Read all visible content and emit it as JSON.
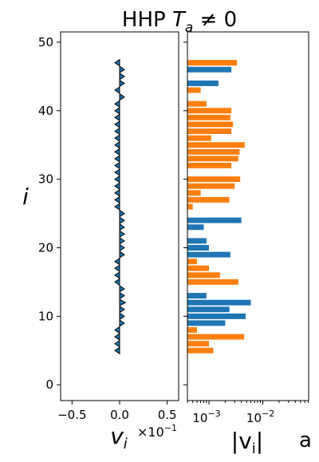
{
  "chart_data": {
    "title": "HHP $T_a \\neq 0$",
    "title_text": {
      "prefix": "HHP ",
      "var": "T",
      "sub": "a",
      "rel": " ≠ 0"
    },
    "panel_label": "a",
    "colors": {
      "arrow": "#1f77b4",
      "positive": "#1f77b4",
      "negative": "#ff7f0e"
    },
    "y_axis": {
      "label": "i",
      "ticks": [
        0,
        10,
        20,
        30,
        40,
        50
      ],
      "lim": [
        -2.3,
        51.5
      ]
    },
    "panels": [
      {
        "type": "quiver",
        "xlabel": "v_i",
        "xlabel_var": "v",
        "xlabel_sub": "i",
        "x_multiplier": "×10",
        "x_multiplier_exp": "−1",
        "xlim": [
          -0.62,
          0.62
        ],
        "x_ticks": [
          -0.5,
          0.0,
          0.5
        ],
        "x_tick_labels": [
          "−0.5",
          "0.0",
          "0.5"
        ]
      },
      {
        "type": "barh",
        "xscale": "log",
        "xlabel": "|v_i|",
        "xlabel_text": "|v",
        "xlabel_sub": "i",
        "xlabel_close": "|",
        "xlim_log10": [
          -3.4,
          -1.15
        ],
        "x_ticks_exp": [
          -3,
          -2
        ],
        "x_tick_base": "10",
        "x_tick_exps": [
          "−3",
          "−2"
        ]
      }
    ],
    "series": [
      {
        "i": 5,
        "v": -0.012
      },
      {
        "i": 6,
        "v": -0.01
      },
      {
        "i": 7,
        "v": -0.045
      },
      {
        "i": 8,
        "v": -0.006
      },
      {
        "i": 9,
        "v": 0.02
      },
      {
        "i": 10,
        "v": 0.048
      },
      {
        "i": 11,
        "v": 0.024
      },
      {
        "i": 12,
        "v": 0.06
      },
      {
        "i": 13,
        "v": 0.009
      },
      {
        "i": 14,
        "v": 0.003
      },
      {
        "i": 15,
        "v": -0.035
      },
      {
        "i": 16,
        "v": -0.016
      },
      {
        "i": 17,
        "v": -0.01
      },
      {
        "i": 18,
        "v": -0.006
      },
      {
        "i": 19,
        "v": 0.025
      },
      {
        "i": 20,
        "v": 0.01
      },
      {
        "i": 21,
        "v": 0.009
      },
      {
        "i": 22,
        "v": 0.004
      },
      {
        "i": 23,
        "v": 0.008
      },
      {
        "i": 24,
        "v": 0.04
      },
      {
        "i": 25,
        "v": 0.004
      },
      {
        "i": 26,
        "v": -0.005
      },
      {
        "i": 27,
        "v": -0.024
      },
      {
        "i": 28,
        "v": -0.007
      },
      {
        "i": 29,
        "v": -0.03
      },
      {
        "i": 30,
        "v": -0.038
      },
      {
        "i": 31,
        "v": -0.003
      },
      {
        "i": 32,
        "v": -0.026
      },
      {
        "i": 33,
        "v": -0.035
      },
      {
        "i": 34,
        "v": -0.037
      },
      {
        "i": 35,
        "v": -0.046
      },
      {
        "i": 36,
        "v": -0.011
      },
      {
        "i": 37,
        "v": -0.026
      },
      {
        "i": 38,
        "v": -0.028
      },
      {
        "i": 39,
        "v": -0.025
      },
      {
        "i": 40,
        "v": -0.026
      },
      {
        "i": 41,
        "v": -0.009
      },
      {
        "i": 42,
        "v": 0.003
      },
      {
        "i": 43,
        "v": -0.007
      },
      {
        "i": 44,
        "v": 0.015
      },
      {
        "i": 45,
        "v": 0.002
      },
      {
        "i": 46,
        "v": 0.026
      },
      {
        "i": 47,
        "v": -0.033
      }
    ]
  }
}
